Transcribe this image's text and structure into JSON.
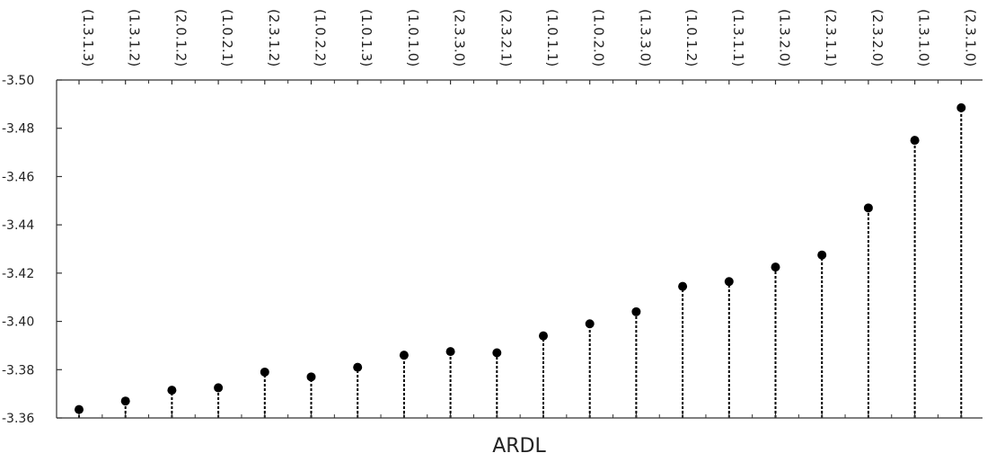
{
  "chart_data": {
    "type": "scatter",
    "xlabel": "ARDL",
    "ylabel": "",
    "categories": [
      "(1.3.1.3)",
      "(1.3.1.2)",
      "(2.0.1.2)",
      "(1.0.2.1)",
      "(2.3.1.2)",
      "(1.0.2.2)",
      "(1.0.1.3)",
      "(1.0.1.0)",
      "(2.3.3.0)",
      "(2.3.2.1)",
      "(1.0.1.1)",
      "(1.0.2.0)",
      "(1.3.3.0)",
      "(1.0.1.2)",
      "(1.3.1.1)",
      "(1.3.2.0)",
      "(2.3.1.1)",
      "(2.3.2.0)",
      "(1.3.1.0)",
      "(2.3.1.0)"
    ],
    "values": [
      -3.3635,
      -3.367,
      -3.3715,
      -3.3725,
      -3.379,
      -3.377,
      -3.381,
      -3.386,
      -3.3875,
      -3.387,
      -3.394,
      -3.399,
      -3.404,
      -3.4145,
      -3.4165,
      -3.4225,
      -3.4275,
      -3.447,
      -3.475,
      -3.4885
    ],
    "ylim": [
      -3.36,
      -3.5
    ],
    "y_ticks": [
      -3.5,
      -3.48,
      -3.46,
      -3.44,
      -3.42,
      -3.4,
      -3.38,
      -3.36
    ],
    "y_tick_labels": [
      "-3.50",
      "-3.48",
      "-3.46",
      "-3.44",
      "-3.42",
      "-3.40",
      "-3.38",
      "-3.36"
    ],
    "inverted_y": true,
    "category_axis_position": "top",
    "marker_color": "#000000",
    "stem_style": "dashed",
    "grid": false,
    "legend": "none"
  }
}
